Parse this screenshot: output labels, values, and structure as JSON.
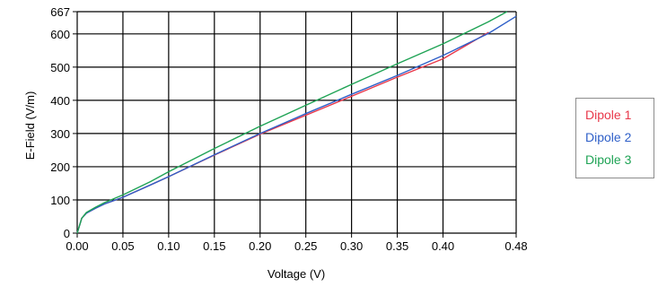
{
  "chart_data": {
    "type": "line",
    "title": "",
    "xlabel": "Voltage (V)",
    "ylabel": "E-Field (V/m)",
    "xlim": [
      0,
      0.48
    ],
    "ylim": [
      0,
      667
    ],
    "x_ticks": [
      "0.00",
      "0.05",
      "0.10",
      "0.15",
      "0.20",
      "0.25",
      "0.30",
      "0.35",
      "0.40",
      "0.48"
    ],
    "x_tick_values": [
      0,
      0.05,
      0.1,
      0.15,
      0.2,
      0.25,
      0.3,
      0.35,
      0.4,
      0.48
    ],
    "y_ticks": [
      "0",
      "100",
      "200",
      "300",
      "400",
      "500",
      "600",
      "667"
    ],
    "y_tick_values": [
      0,
      100,
      200,
      300,
      400,
      500,
      600,
      667
    ],
    "grid": true,
    "legend_position": "right",
    "series": [
      {
        "name": "Dipole 1",
        "color": "#e8384a",
        "x": [
          0,
          0.005,
          0.01,
          0.02,
          0.03,
          0.05,
          0.08,
          0.1,
          0.15,
          0.2,
          0.25,
          0.3,
          0.35,
          0.4,
          0.45
        ],
        "y": [
          0,
          45,
          60,
          75,
          88,
          108,
          145,
          170,
          235,
          298,
          355,
          412,
          470,
          525,
          605
        ]
      },
      {
        "name": "Dipole 2",
        "color": "#2e5fc8",
        "x": [
          0,
          0.005,
          0.01,
          0.02,
          0.03,
          0.05,
          0.08,
          0.1,
          0.15,
          0.2,
          0.25,
          0.3,
          0.35,
          0.4,
          0.45,
          0.48
        ],
        "y": [
          0,
          45,
          60,
          75,
          88,
          108,
          145,
          170,
          236,
          300,
          360,
          418,
          475,
          535,
          602,
          653
        ]
      },
      {
        "name": "Dipole 3",
        "color": "#1fa355",
        "x": [
          0,
          0.005,
          0.01,
          0.02,
          0.03,
          0.05,
          0.08,
          0.1,
          0.15,
          0.2,
          0.25,
          0.3,
          0.35,
          0.4,
          0.45,
          0.47
        ],
        "y": [
          0,
          45,
          62,
          78,
          92,
          115,
          155,
          185,
          255,
          322,
          385,
          448,
          510,
          570,
          637,
          667
        ]
      }
    ]
  }
}
